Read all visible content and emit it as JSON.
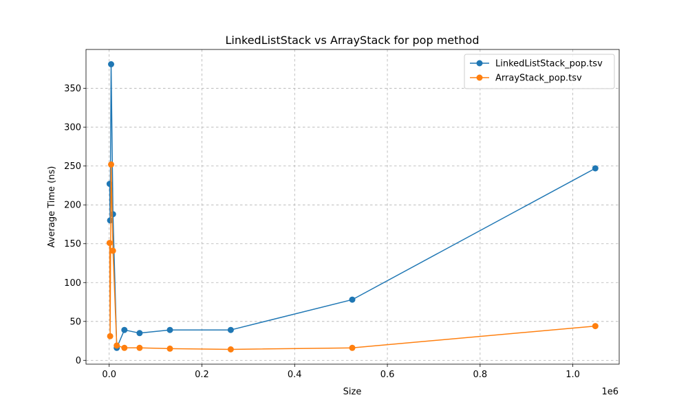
{
  "chart_data": {
    "type": "line",
    "title": "LinkedListStack vs ArrayStack for pop method",
    "xlabel": "Size",
    "ylabel": "Average Time (ns)",
    "x_offset_label": "1e6",
    "xlim": [
      -50000,
      1100000
    ],
    "ylim": [
      -5,
      400
    ],
    "x_ticks": [
      0,
      200000,
      400000,
      600000,
      800000,
      1000000
    ],
    "x_tick_labels": [
      "0.0",
      "0.2",
      "0.4",
      "0.6",
      "0.8",
      "1.0"
    ],
    "y_ticks": [
      0,
      50,
      100,
      150,
      200,
      250,
      300,
      350
    ],
    "y_tick_labels": [
      "0",
      "50",
      "100",
      "150",
      "200",
      "250",
      "300",
      "350"
    ],
    "grid": true,
    "legend_position": "top-right",
    "series": [
      {
        "name": "LinkedListStack_pop.tsv",
        "color": "#1f77b4",
        "x": [
          1024,
          2048,
          4096,
          8192,
          16384,
          32768,
          65536,
          131072,
          262144,
          524288,
          1048576
        ],
        "y": [
          227,
          180,
          381,
          188,
          16,
          39,
          35,
          39,
          39,
          78,
          247
        ]
      },
      {
        "name": "ArrayStack_pop.tsv",
        "color": "#ff7f0e",
        "x": [
          1024,
          2048,
          4096,
          8192,
          16384,
          32768,
          65536,
          131072,
          262144,
          524288,
          1048576
        ],
        "y": [
          151,
          31,
          252,
          141,
          19,
          16,
          16,
          15,
          14,
          16,
          44
        ]
      }
    ]
  }
}
